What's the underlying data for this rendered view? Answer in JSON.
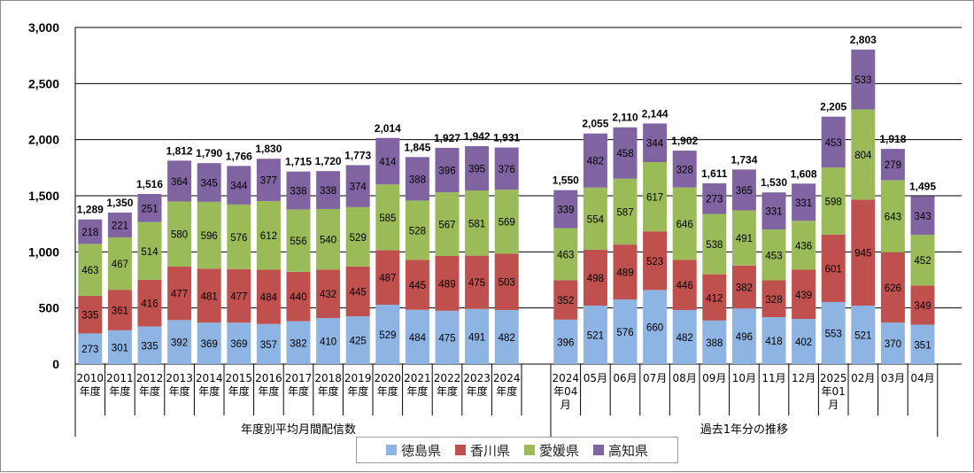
{
  "chart_data": {
    "type": "bar",
    "stacked": true,
    "ylim": [
      0,
      3000
    ],
    "yticks": [
      "0",
      "500",
      "1,000",
      "1,500",
      "2,000",
      "2,500",
      "3,000"
    ],
    "yticks_values": [
      0,
      500,
      1000,
      1500,
      2000,
      2500,
      3000
    ],
    "grid": true,
    "legend_placement": "bottom",
    "groups": [
      {
        "label": "年度別平均月間配信数",
        "categories": [
          [
            "2010",
            "年度"
          ],
          [
            "2011",
            "年度"
          ],
          [
            "2012",
            "年度"
          ],
          [
            "2013",
            "年度"
          ],
          [
            "2014",
            "年度"
          ],
          [
            "2015",
            "年度"
          ],
          [
            "2016",
            "年度"
          ],
          [
            "2017",
            "年度"
          ],
          [
            "2018",
            "年度"
          ],
          [
            "2019",
            "年度"
          ],
          [
            "2020",
            "年度"
          ],
          [
            "2021",
            "年度"
          ],
          [
            "2022",
            "年度"
          ],
          [
            "2023",
            "年度"
          ],
          [
            "2024",
            "年度"
          ]
        ],
        "series_values": [
          [
            273,
            301,
            335,
            392,
            369,
            369,
            357,
            382,
            410,
            425,
            529,
            484,
            475,
            491,
            482
          ],
          [
            335,
            361,
            416,
            477,
            481,
            477,
            484,
            440,
            432,
            445,
            487,
            445,
            489,
            475,
            503
          ],
          [
            463,
            467,
            514,
            580,
            596,
            576,
            612,
            556,
            540,
            529,
            585,
            528,
            567,
            581,
            569
          ],
          [
            218,
            221,
            251,
            364,
            345,
            344,
            377,
            338,
            338,
            374,
            414,
            388,
            396,
            395,
            376
          ]
        ],
        "totals": [
          "1,289",
          "1,350",
          "1,516",
          "1,812",
          "1,790",
          "1,766",
          "1,830",
          "1,715",
          "1,720",
          "1,773",
          "2,014",
          "1,845",
          "1,927",
          "1,942",
          "1,931"
        ]
      },
      {
        "label": "過去1年分の推移",
        "categories": [
          [
            "2024",
            "年04",
            "月"
          ],
          [
            "05月"
          ],
          [
            "06月"
          ],
          [
            "07月"
          ],
          [
            "08月"
          ],
          [
            "09月"
          ],
          [
            "10月"
          ],
          [
            "11月"
          ],
          [
            "12月"
          ],
          [
            "2025",
            "年01",
            "月"
          ],
          [
            "02月"
          ],
          [
            "03月"
          ],
          [
            "04月"
          ]
        ],
        "series_values": [
          [
            396,
            521,
            576,
            660,
            482,
            388,
            496,
            418,
            402,
            553,
            521,
            370,
            351
          ],
          [
            352,
            498,
            489,
            523,
            446,
            412,
            382,
            328,
            439,
            601,
            945,
            626,
            349
          ],
          [
            463,
            554,
            587,
            617,
            646,
            538,
            491,
            453,
            436,
            598,
            804,
            643,
            452
          ],
          [
            339,
            482,
            458,
            344,
            328,
            273,
            365,
            331,
            331,
            453,
            533,
            279,
            343
          ]
        ],
        "totals": [
          "1,550",
          "2,055",
          "2,110",
          "2,144",
          "1,902",
          "1,611",
          "1,734",
          "1,530",
          "1,608",
          "2,205",
          "2,803",
          "1,918",
          "1,495"
        ]
      }
    ],
    "series": [
      {
        "name": "徳島県",
        "color": "#8DB4E2"
      },
      {
        "name": "香川県",
        "color": "#C0504D"
      },
      {
        "name": "愛媛県",
        "color": "#9BBB59"
      },
      {
        "name": "高知県",
        "color": "#8064A2"
      }
    ]
  }
}
